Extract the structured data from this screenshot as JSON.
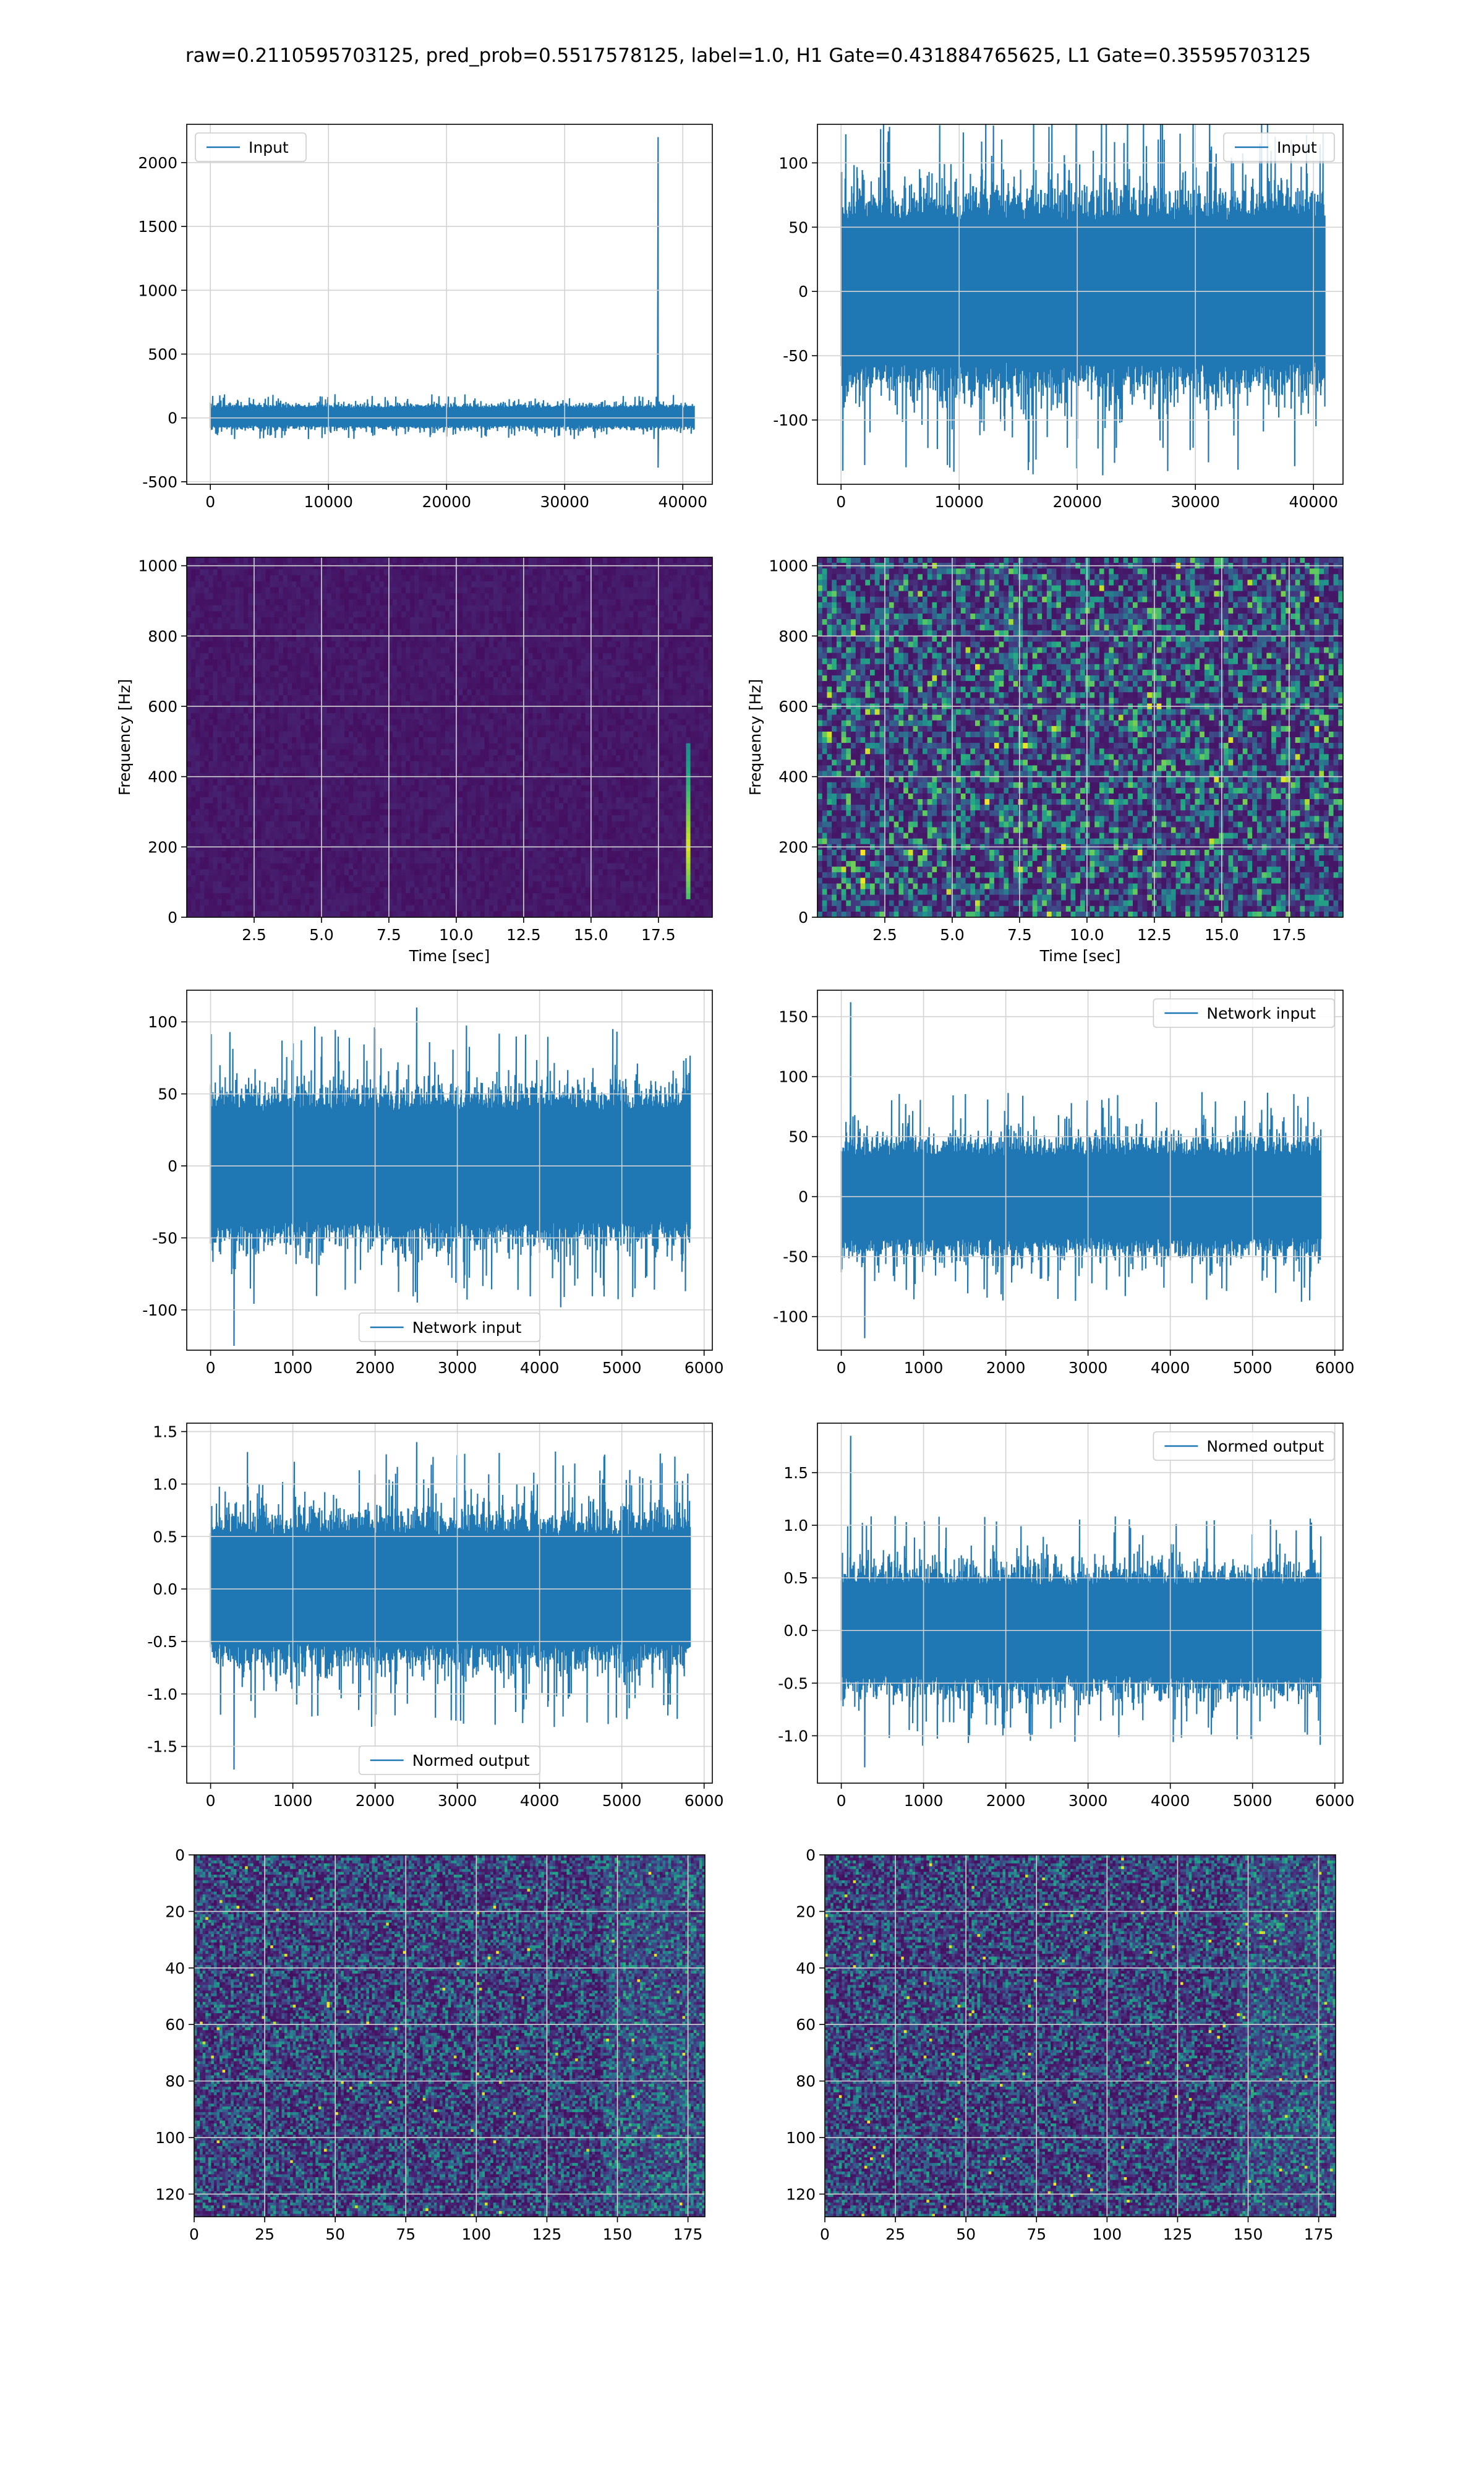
{
  "figure": {
    "suptitle": "raw=0.2110595703125, pred_prob=0.5517578125, label=1.0, H1 Gate=0.431884765625, L1 Gate=0.35595703125",
    "line_color": "#1f77b4",
    "grid_color": "#d3d3d3",
    "colormap": "viridis",
    "background_colormap_base": "#440154"
  },
  "chart_data": [
    {
      "id": "r1c1",
      "type": "line",
      "legend": {
        "labels": [
          "Input"
        ],
        "loc": "upper-left"
      },
      "xlim": [
        -2000,
        42500
      ],
      "ylim": [
        -520,
        2300
      ],
      "xticks": [
        0,
        10000,
        20000,
        30000,
        40000
      ],
      "yticks": [
        -500,
        0,
        500,
        1000,
        1500,
        2000
      ],
      "grid": true,
      "signal": {
        "n": 40960,
        "noise_band": [
          -70,
          90
        ],
        "spike": {
          "x": 37900,
          "max": 2200,
          "min": -390
        }
      }
    },
    {
      "id": "r1c2",
      "type": "line",
      "legend": {
        "labels": [
          "Input"
        ],
        "loc": "upper-right"
      },
      "xlim": [
        -2000,
        42500
      ],
      "ylim": [
        -150,
        130
      ],
      "xticks": [
        0,
        10000,
        20000,
        30000,
        40000
      ],
      "yticks": [
        -100,
        -50,
        0,
        50,
        100
      ],
      "grid": true,
      "signal": {
        "n": 40960,
        "noise_band": [
          -65,
          65
        ],
        "peaks": [
          128,
          -135
        ]
      }
    },
    {
      "id": "r2c1",
      "type": "heatmap",
      "kind": "spectrogram",
      "xlabel": "Time [sec]",
      "ylabel": "Frequency [Hz]",
      "xlim": [
        0,
        19.5
      ],
      "ylim": [
        0,
        1024
      ],
      "xticks": [
        2.5,
        5.0,
        7.5,
        10.0,
        12.5,
        15.0,
        17.5
      ],
      "yticks": [
        0,
        200,
        400,
        600,
        800,
        1000
      ],
      "grid": true,
      "features": {
        "event_time": 18.6,
        "event_freq_range": [
          50,
          500
        ]
      }
    },
    {
      "id": "r2c2",
      "type": "heatmap",
      "kind": "spectrogram",
      "xlabel": "Time [sec]",
      "ylabel": "Frequency [Hz]",
      "xlim": [
        0,
        19.5
      ],
      "ylim": [
        0,
        1024
      ],
      "xticks": [
        2.5,
        5.0,
        7.5,
        10.0,
        12.5,
        15.0,
        17.5
      ],
      "yticks": [
        0,
        200,
        400,
        600,
        800,
        1000
      ],
      "grid": true
    },
    {
      "id": "r3c1",
      "type": "line",
      "legend": {
        "labels": [
          "Network input"
        ],
        "loc": "lower-center"
      },
      "xlim": [
        -290,
        6100
      ],
      "ylim": [
        -128,
        122
      ],
      "xticks": [
        0,
        1000,
        2000,
        3000,
        4000,
        5000,
        6000
      ],
      "yticks": [
        -100,
        -50,
        0,
        50,
        100
      ],
      "grid": true,
      "signal": {
        "n": 5830,
        "noise_band": [
          -45,
          45
        ],
        "peaks": [
          110,
          -125
        ]
      }
    },
    {
      "id": "r3c2",
      "type": "line",
      "legend": {
        "labels": [
          "Network input"
        ],
        "loc": "upper-right"
      },
      "xlim": [
        -290,
        6100
      ],
      "ylim": [
        -128,
        172
      ],
      "xticks": [
        0,
        1000,
        2000,
        3000,
        4000,
        5000,
        6000
      ],
      "yticks": [
        -100,
        -50,
        0,
        50,
        100,
        150
      ],
      "grid": true,
      "signal": {
        "n": 5830,
        "noise_band": [
          -40,
          40
        ],
        "peaks": [
          162,
          -118
        ]
      }
    },
    {
      "id": "r4c1",
      "type": "line",
      "legend": {
        "labels": [
          "Normed output"
        ],
        "loc": "lower-center"
      },
      "xlim": [
        -290,
        6100
      ],
      "ylim": [
        -1.85,
        1.58
      ],
      "xticks": [
        0,
        1000,
        2000,
        3000,
        4000,
        5000,
        6000
      ],
      "yticks": [
        -1.5,
        -1.0,
        -0.5,
        0.0,
        0.5,
        1.0,
        1.5
      ],
      "grid": true,
      "signal": {
        "n": 5830,
        "noise_band": [
          -0.6,
          0.6
        ],
        "peaks": [
          1.4,
          -1.72
        ]
      }
    },
    {
      "id": "r4c2",
      "type": "line",
      "legend": {
        "labels": [
          "Normed output"
        ],
        "loc": "upper-right"
      },
      "xlim": [
        -290,
        6100
      ],
      "ylim": [
        -1.45,
        1.97
      ],
      "xticks": [
        0,
        1000,
        2000,
        3000,
        4000,
        5000,
        6000
      ],
      "yticks": [
        -1.0,
        -0.5,
        0.0,
        0.5,
        1.0,
        1.5
      ],
      "grid": true,
      "signal": {
        "n": 5830,
        "noise_band": [
          -0.5,
          0.5
        ],
        "peaks": [
          1.85,
          -1.3
        ]
      }
    },
    {
      "id": "r5c1",
      "type": "heatmap",
      "kind": "matrix",
      "xlim": [
        0,
        181
      ],
      "ylim": [
        128,
        0
      ],
      "xticks": [
        0,
        25,
        50,
        75,
        100,
        125,
        150,
        175
      ],
      "yticks": [
        0,
        20,
        40,
        60,
        80,
        100,
        120
      ],
      "grid": true
    },
    {
      "id": "r5c2",
      "type": "heatmap",
      "kind": "matrix",
      "xlim": [
        0,
        181
      ],
      "ylim": [
        128,
        0
      ],
      "xticks": [
        0,
        25,
        50,
        75,
        100,
        125,
        150,
        175
      ],
      "yticks": [
        0,
        20,
        40,
        60,
        80,
        100,
        120
      ],
      "grid": true
    }
  ]
}
